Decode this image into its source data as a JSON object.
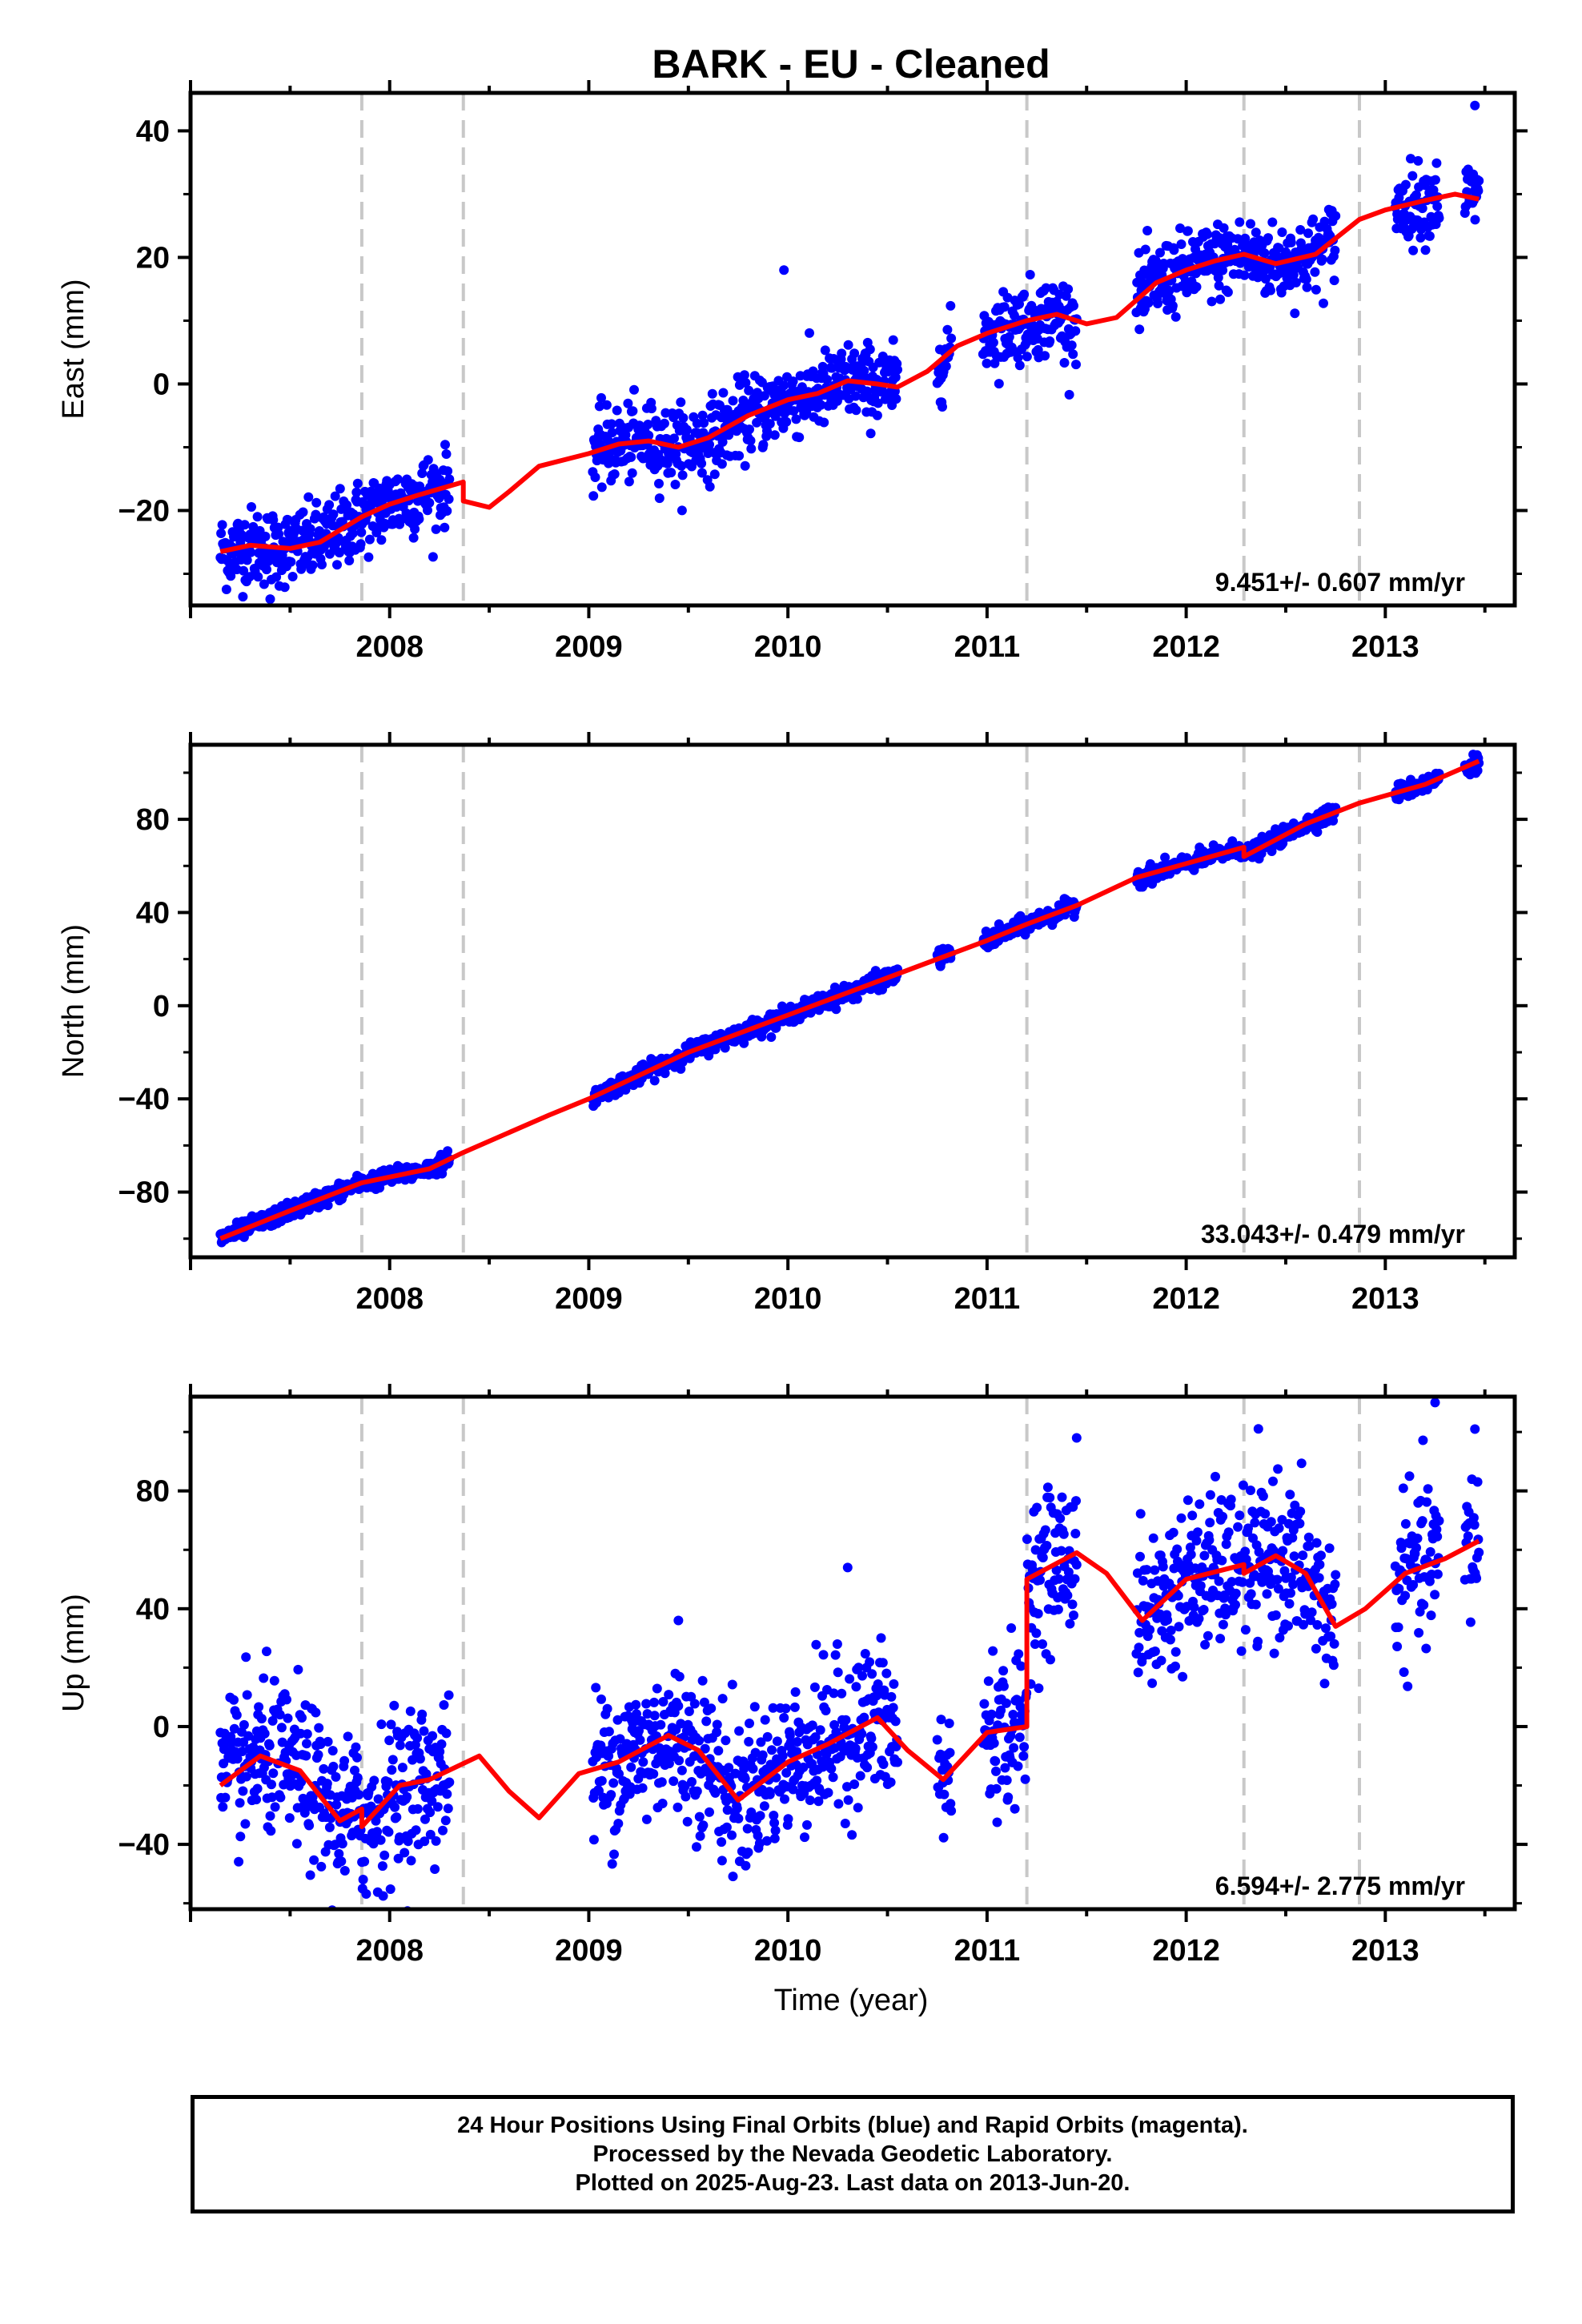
{
  "figure": {
    "title": "BARK  - EU - Cleaned",
    "xlabel": "Time (year)",
    "series_colors": {
      "final_orbits": "#0000ff",
      "model": "#ff0000",
      "steps": "#c8c8c8"
    }
  },
  "chart_data": [
    {
      "type": "scatter",
      "panel": "east",
      "ylabel": "East (mm)",
      "xlim": [
        2007.0,
        2013.65
      ],
      "ylim": [
        -35,
        46
      ],
      "x_ticks": [
        2008,
        2009,
        2010,
        2011,
        2012,
        2013
      ],
      "y_ticks": [
        -20,
        0,
        20,
        40
      ],
      "rate_text": "9.451+/- 0.607 mm/yr",
      "step_epochs": [
        2007.86,
        2008.37,
        2011.2,
        2012.29,
        2012.87
      ],
      "data_segments": [
        {
          "start": 2007.15,
          "end": 2008.3,
          "spread": 3
        },
        {
          "start": 2009.02,
          "end": 2010.55,
          "spread": 3
        },
        {
          "start": 2010.75,
          "end": 2010.82,
          "spread": 3
        },
        {
          "start": 2010.98,
          "end": 2011.45,
          "spread": 3
        },
        {
          "start": 2011.75,
          "end": 2012.75,
          "spread": 3
        },
        {
          "start": 2013.05,
          "end": 2013.27,
          "spread": 3
        },
        {
          "start": 2013.4,
          "end": 2013.47,
          "spread": 3
        }
      ],
      "model_curve": {
        "x": [
          2007.15,
          2007.3,
          2007.5,
          2007.65,
          2007.86,
          2008.0,
          2008.15,
          2008.37,
          2008.37,
          2008.5,
          2008.6,
          2008.75,
          2009.0,
          2009.15,
          2009.3,
          2009.45,
          2009.6,
          2009.8,
          2010.0,
          2010.15,
          2010.3,
          2010.45,
          2010.55,
          2010.7,
          2010.85,
          2011.0,
          2011.2,
          2011.35,
          2011.5,
          2011.65,
          2011.85,
          2012.0,
          2012.15,
          2012.29,
          2012.45,
          2012.65,
          2012.87,
          2013.0,
          2013.2,
          2013.35,
          2013.47
        ],
        "y": [
          -26.5,
          -25.5,
          -26,
          -25,
          -21,
          -19,
          -17.5,
          -15.5,
          -18.5,
          -19.5,
          -17,
          -13,
          -11,
          -9.5,
          -9,
          -10,
          -8.5,
          -5,
          -2.5,
          -1.5,
          0.5,
          0,
          -0.5,
          2,
          6,
          8,
          10,
          11,
          9.5,
          10.5,
          16,
          18,
          19.5,
          20.5,
          19,
          20.5,
          26,
          27.5,
          29,
          30,
          29.2
        ]
      },
      "outliers": [
        {
          "x": 2013.45,
          "y": 44
        },
        {
          "x": 2009.98,
          "y": 18
        },
        {
          "x": 2007.4,
          "y": -34
        }
      ]
    },
    {
      "type": "scatter",
      "panel": "north",
      "ylabel": "North (mm)",
      "xlim": [
        2007.0,
        2013.65
      ],
      "ylim": [
        -108,
        112
      ],
      "x_ticks": [
        2008,
        2009,
        2010,
        2011,
        2012,
        2013
      ],
      "y_ticks": [
        -80,
        -40,
        0,
        40,
        80
      ],
      "rate_text": "33.043+/- 0.479 mm/yr",
      "step_epochs": [
        2007.86,
        2008.37,
        2011.2,
        2012.29,
        2012.87
      ],
      "data_segments": [
        {
          "start": 2007.15,
          "end": 2008.3,
          "spread": 1.8
        },
        {
          "start": 2009.02,
          "end": 2010.55,
          "spread": 1.8
        },
        {
          "start": 2010.75,
          "end": 2010.82,
          "spread": 1.8
        },
        {
          "start": 2010.98,
          "end": 2011.45,
          "spread": 1.8
        },
        {
          "start": 2011.75,
          "end": 2012.75,
          "spread": 1.8
        },
        {
          "start": 2013.05,
          "end": 2013.27,
          "spread": 1.8
        },
        {
          "start": 2013.4,
          "end": 2013.47,
          "spread": 1.8
        }
      ],
      "model_curve": {
        "x": [
          2007.15,
          2007.5,
          2007.86,
          2008.2,
          2008.37,
          2008.8,
          2009.0,
          2009.5,
          2010.0,
          2010.5,
          2011.0,
          2011.2,
          2011.45,
          2011.75,
          2012.0,
          2012.29,
          2012.29,
          2012.6,
          2012.87,
          2013.2,
          2013.47
        ],
        "y": [
          -100,
          -88,
          -76,
          -70,
          -63,
          -47,
          -40,
          -20,
          -4,
          12,
          28,
          35,
          43,
          55,
          61,
          68,
          64,
          78,
          87,
          95,
          105
        ]
      },
      "outliers": []
    },
    {
      "type": "scatter",
      "panel": "up",
      "ylabel": "Up (mm)",
      "xlim": [
        2007.0,
        2013.65
      ],
      "ylim": [
        -62,
        112
      ],
      "x_ticks": [
        2008,
        2009,
        2010,
        2011,
        2012,
        2013
      ],
      "y_ticks": [
        -40,
        0,
        40,
        80
      ],
      "rate_text": "6.594+/- 2.775 mm/yr",
      "step_epochs": [
        2007.86,
        2008.37,
        2011.2,
        2012.29,
        2012.87
      ],
      "data_segments": [
        {
          "start": 2007.15,
          "end": 2008.3,
          "spread": 13
        },
        {
          "start": 2009.02,
          "end": 2010.55,
          "spread": 13
        },
        {
          "start": 2010.75,
          "end": 2010.82,
          "spread": 13
        },
        {
          "start": 2010.98,
          "end": 2011.45,
          "spread": 13
        },
        {
          "start": 2011.75,
          "end": 2012.75,
          "spread": 13
        },
        {
          "start": 2013.05,
          "end": 2013.27,
          "spread": 13
        },
        {
          "start": 2013.4,
          "end": 2013.47,
          "spread": 13
        }
      ],
      "model_curve": {
        "x": [
          2007.15,
          2007.35,
          2007.55,
          2007.75,
          2007.86,
          2007.86,
          2008.05,
          2008.2,
          2008.45,
          2008.6,
          2008.75,
          2008.95,
          2009.15,
          2009.4,
          2009.55,
          2009.75,
          2010.0,
          2010.2,
          2010.45,
          2010.6,
          2010.78,
          2011.0,
          2011.2,
          2011.2,
          2011.45,
          2011.6,
          2011.78,
          2012.0,
          2012.29,
          2012.29,
          2012.45,
          2012.6,
          2012.75,
          2012.9,
          2013.1,
          2013.3,
          2013.47
        ],
        "y": [
          -20,
          -10,
          -15,
          -32,
          -28,
          -34,
          -20,
          -18,
          -10,
          -22,
          -31,
          -16,
          -12,
          -3,
          -8,
          -25,
          -12,
          -6,
          3,
          -8,
          -18,
          -2,
          0,
          50,
          59,
          52,
          36,
          50,
          55,
          52,
          58,
          52,
          34,
          40,
          52,
          57,
          63
        ]
      },
      "outliers": [
        {
          "x": 2013.45,
          "y": 101
        },
        {
          "x": 2013.25,
          "y": 110
        },
        {
          "x": 2009.45,
          "y": 36
        },
        {
          "x": 2010.3,
          "y": 54
        },
        {
          "x": 2011.45,
          "y": 98
        }
      ]
    }
  ],
  "footer": {
    "line1": "24 Hour Positions Using Final Orbits (blue) and Rapid Orbits (magenta).",
    "line2": "Processed by the Nevada Geodetic Laboratory.",
    "line3": "Plotted on 2025-Aug-23. Last data on 2013-Jun-20."
  }
}
